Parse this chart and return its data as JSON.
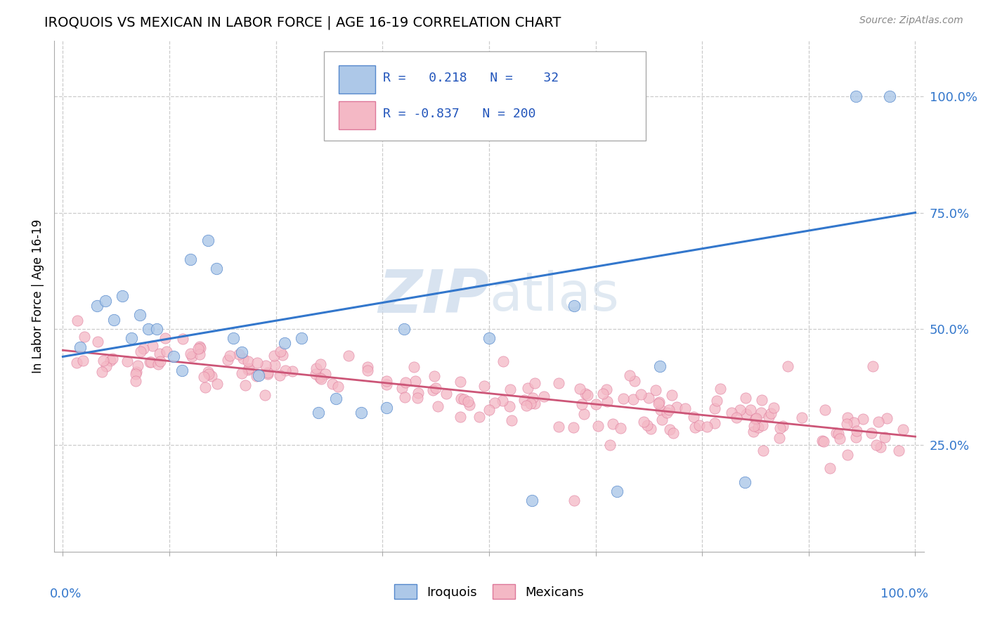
{
  "title": "IROQUOIS VS MEXICAN IN LABOR FORCE | AGE 16-19 CORRELATION CHART",
  "source": "Source: ZipAtlas.com",
  "ylabel": "In Labor Force | Age 16-19",
  "ytick_labels": [
    "25.0%",
    "50.0%",
    "75.0%",
    "100.0%"
  ],
  "ytick_values": [
    0.25,
    0.5,
    0.75,
    1.0
  ],
  "xlim": [
    -0.01,
    1.01
  ],
  "ylim": [
    0.02,
    1.12
  ],
  "iroquois_color": "#adc8e8",
  "iroquois_edge": "#5588cc",
  "iroquois_line": "#3377cc",
  "mexicans_color": "#f4b8c5",
  "mexicans_edge": "#dd7799",
  "mexicans_line": "#cc5577",
  "R_iroquois": 0.218,
  "N_iroquois": 32,
  "R_mexicans": -0.837,
  "N_mexicans": 200,
  "watermark_zip": "ZIP",
  "watermark_atlas": "atlas",
  "iroquois_x": [
    0.02,
    0.04,
    0.05,
    0.06,
    0.07,
    0.08,
    0.09,
    0.1,
    0.11,
    0.13,
    0.14,
    0.15,
    0.17,
    0.18,
    0.2,
    0.21,
    0.23,
    0.26,
    0.28,
    0.3,
    0.32,
    0.35,
    0.38,
    0.4,
    0.5,
    0.55,
    0.6,
    0.65,
    0.7,
    0.8,
    0.93,
    0.97
  ],
  "iroquois_y": [
    0.46,
    0.55,
    0.56,
    0.52,
    0.57,
    0.48,
    0.53,
    0.5,
    0.5,
    0.44,
    0.41,
    0.65,
    0.69,
    0.63,
    0.48,
    0.45,
    0.4,
    0.47,
    0.48,
    0.32,
    0.35,
    0.32,
    0.33,
    0.5,
    0.48,
    0.13,
    0.55,
    0.15,
    0.42,
    0.17,
    1.0,
    1.0
  ]
}
